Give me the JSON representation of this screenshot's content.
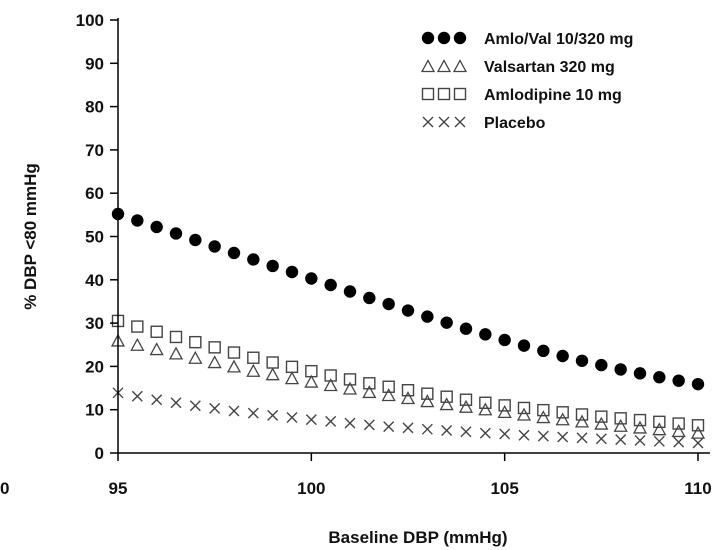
{
  "chart_data": {
    "type": "scatter",
    "xlabel": "Baseline DBP (mmHg)",
    "ylabel": "% DBP <80 mmHg",
    "xlim": [
      95,
      110
    ],
    "ylim": [
      0,
      100
    ],
    "xticks": [
      95,
      100,
      105,
      110
    ],
    "yticks": [
      0,
      10,
      20,
      30,
      40,
      50,
      60,
      70,
      80,
      90,
      100
    ],
    "grid": false,
    "legend_position": "top-right",
    "edge_labels": {
      "left_bottom": "0"
    },
    "series": [
      {
        "name": "Amlo/Val 10/320 mg",
        "marker": "filled-circle",
        "color": "#000000",
        "x": [
          95,
          95.5,
          96,
          96.5,
          97,
          97.5,
          98,
          98.5,
          99,
          99.5,
          100,
          100.5,
          101,
          101.5,
          102,
          102.5,
          103,
          103.5,
          104,
          104.5,
          105,
          105.5,
          106,
          106.5,
          107,
          107.5,
          108,
          108.5,
          109,
          109.5,
          110
        ],
        "values": [
          55.2,
          53.7,
          52.2,
          50.7,
          49.2,
          47.7,
          46.2,
          44.7,
          43.2,
          41.8,
          40.3,
          38.8,
          37.3,
          35.8,
          34.4,
          32.9,
          31.5,
          30.1,
          28.7,
          27.4,
          26.1,
          24.8,
          23.6,
          22.4,
          21.3,
          20.3,
          19.3,
          18.4,
          17.5,
          16.7,
          15.9
        ]
      },
      {
        "name": "Valsartan 320 mg",
        "marker": "open-triangle",
        "color": "#000000",
        "x": [
          95,
          95.5,
          96,
          96.5,
          97,
          97.5,
          98,
          98.5,
          99,
          99.5,
          100,
          100.5,
          101,
          101.5,
          102,
          102.5,
          103,
          103.5,
          104,
          104.5,
          105,
          105.5,
          106,
          106.5,
          107,
          107.5,
          108,
          108.5,
          109,
          109.5,
          110
        ],
        "values": [
          26.0,
          25.0,
          24.0,
          23.0,
          22.0,
          21.0,
          20.0,
          19.0,
          18.2,
          17.3,
          16.5,
          15.7,
          14.9,
          14.1,
          13.4,
          12.7,
          12.0,
          11.3,
          10.7,
          10.1,
          9.5,
          8.9,
          8.3,
          7.8,
          7.3,
          6.8,
          6.3,
          5.9,
          5.5,
          5.1,
          4.7
        ]
      },
      {
        "name": "Amlodipine 10 mg",
        "marker": "open-square",
        "color": "#000000",
        "x": [
          95,
          95.5,
          96,
          96.5,
          97,
          97.5,
          98,
          98.5,
          99,
          99.5,
          100,
          100.5,
          101,
          101.5,
          102,
          102.5,
          103,
          103.5,
          104,
          104.5,
          105,
          105.5,
          106,
          106.5,
          107,
          107.5,
          108,
          108.5,
          109,
          109.5,
          110
        ],
        "values": [
          30.5,
          29.2,
          28.0,
          26.8,
          25.6,
          24.4,
          23.2,
          22.0,
          20.9,
          19.9,
          18.9,
          17.9,
          17.0,
          16.1,
          15.3,
          14.5,
          13.7,
          13.0,
          12.3,
          11.6,
          11.0,
          10.4,
          9.9,
          9.4,
          8.9,
          8.4,
          8.0,
          7.6,
          7.2,
          6.8,
          6.4
        ]
      },
      {
        "name": "Placebo",
        "marker": "cross",
        "color": "#000000",
        "x": [
          95,
          95.5,
          96,
          96.5,
          97,
          97.5,
          98,
          98.5,
          99,
          99.5,
          100,
          100.5,
          101,
          101.5,
          102,
          102.5,
          103,
          103.5,
          104,
          104.5,
          105,
          105.5,
          106,
          106.5,
          107,
          107.5,
          108,
          108.5,
          109,
          109.5,
          110
        ],
        "values": [
          13.9,
          13.1,
          12.3,
          11.6,
          10.9,
          10.3,
          9.7,
          9.2,
          8.7,
          8.2,
          7.7,
          7.3,
          6.9,
          6.5,
          6.1,
          5.8,
          5.5,
          5.2,
          4.9,
          4.6,
          4.4,
          4.1,
          3.9,
          3.7,
          3.5,
          3.3,
          3.1,
          2.9,
          2.7,
          2.5,
          2.3
        ]
      }
    ]
  }
}
